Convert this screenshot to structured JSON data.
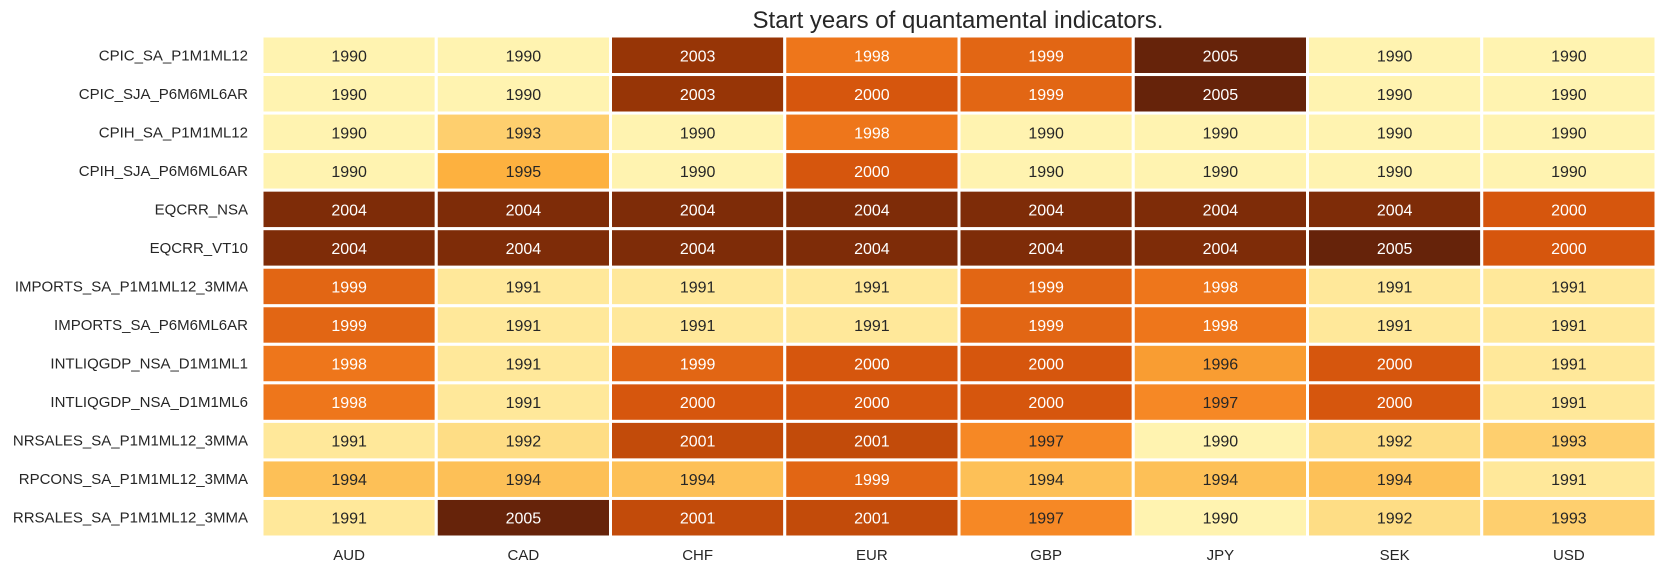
{
  "chart_data": {
    "type": "heatmap",
    "title": "Start years of quantamental indicators.",
    "xlabel": "",
    "ylabel": "",
    "x_categories": [
      "AUD",
      "CAD",
      "CHF",
      "EUR",
      "GBP",
      "JPY",
      "SEK",
      "USD"
    ],
    "y_categories": [
      "CPIC_SA_P1M1ML12",
      "CPIC_SJA_P6M6ML6AR",
      "CPIH_SA_P1M1ML12",
      "CPIH_SJA_P6M6ML6AR",
      "EQCRR_NSA",
      "EQCRR_VT10",
      "IMPORTS_SA_P1M1ML12_3MMA",
      "IMPORTS_SA_P6M6ML6AR",
      "INTLIQGDP_NSA_D1M1ML1",
      "INTLIQGDP_NSA_D1M1ML6",
      "NRSALES_SA_P1M1ML12_3MMA",
      "RPCONS_SA_P1M1ML12_3MMA",
      "RRSALES_SA_P1M1ML12_3MMA"
    ],
    "values": [
      [
        1990,
        1990,
        2003,
        1998,
        1999,
        2005,
        1990,
        1990
      ],
      [
        1990,
        1990,
        2003,
        2000,
        1999,
        2005,
        1990,
        1990
      ],
      [
        1990,
        1993,
        1990,
        1998,
        1990,
        1990,
        1990,
        1990
      ],
      [
        1990,
        1995,
        1990,
        2000,
        1990,
        1990,
        1990,
        1990
      ],
      [
        2004,
        2004,
        2004,
        2004,
        2004,
        2004,
        2004,
        2000
      ],
      [
        2004,
        2004,
        2004,
        2004,
        2004,
        2004,
        2005,
        2000
      ],
      [
        1999,
        1991,
        1991,
        1991,
        1999,
        1998,
        1991,
        1991
      ],
      [
        1999,
        1991,
        1991,
        1991,
        1999,
        1998,
        1991,
        1991
      ],
      [
        1998,
        1991,
        1999,
        2000,
        2000,
        1996,
        2000,
        1991
      ],
      [
        1998,
        1991,
        2000,
        2000,
        2000,
        1997,
        2000,
        1991
      ],
      [
        1991,
        1992,
        2001,
        2001,
        1997,
        1990,
        1992,
        1993
      ],
      [
        1994,
        1994,
        1994,
        1999,
        1994,
        1994,
        1994,
        1991
      ],
      [
        1991,
        2005,
        2001,
        2001,
        1997,
        1990,
        1992,
        1993
      ]
    ],
    "value_range": [
      1990,
      2005
    ],
    "colormap": "YlOrBr",
    "colormap_stops": [
      "#fff3b0",
      "#fed77a",
      "#fdb13f",
      "#f47e1e",
      "#d6560d",
      "#a33a05",
      "#66230a"
    ],
    "annotated": true,
    "legend": "none",
    "grid": false
  }
}
